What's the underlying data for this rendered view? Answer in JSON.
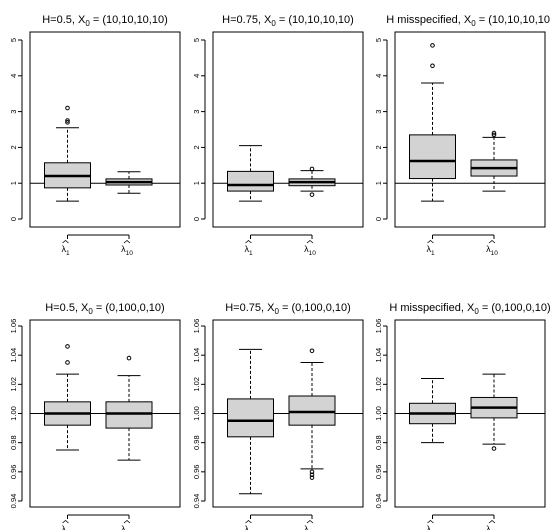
{
  "chart_data": [
    {
      "type": "box",
      "title_main": "H=0.5, X",
      "title_sub": "0",
      "title_rest": " = (10,10,10,10)",
      "categories": [
        {
          "symbol": "λ",
          "sub": "1"
        },
        {
          "symbol": "λ",
          "sub": "10"
        }
      ],
      "ylim": [
        0,
        5
      ],
      "yticks": [
        "0",
        "1",
        "2",
        "3",
        "4",
        "5"
      ],
      "reference_line": 1,
      "boxes": [
        {
          "whisker_low": 0.5,
          "q1": 0.87,
          "median": 1.2,
          "q3": 1.57,
          "whisker_high": 2.55,
          "outliers": [
            2.7,
            2.75,
            3.1
          ]
        },
        {
          "whisker_low": 0.72,
          "q1": 0.95,
          "median": 1.03,
          "q3": 1.12,
          "whisker_high": 1.32,
          "outliers": []
        }
      ]
    },
    {
      "type": "box",
      "title_main": "H=0.75, X",
      "title_sub": "0",
      "title_rest": " = (10,10,10,10)",
      "categories": [
        {
          "symbol": "λ",
          "sub": "1"
        },
        {
          "symbol": "λ",
          "sub": "10"
        }
      ],
      "ylim": [
        0,
        5
      ],
      "yticks": [
        "0",
        "1",
        "2",
        "3",
        "4",
        "5"
      ],
      "reference_line": 1,
      "boxes": [
        {
          "whisker_low": 0.5,
          "q1": 0.78,
          "median": 0.95,
          "q3": 1.33,
          "whisker_high": 2.05,
          "outliers": []
        },
        {
          "whisker_low": 0.78,
          "q1": 0.93,
          "median": 1.03,
          "q3": 1.12,
          "whisker_high": 1.35,
          "outliers": [
            0.68,
            1.4
          ]
        }
      ]
    },
    {
      "type": "box",
      "title_main": "H misspecified, X",
      "title_sub": "0",
      "title_rest": " = (10,10,10,10)",
      "categories": [
        {
          "symbol": "λ",
          "sub": "1"
        },
        {
          "symbol": "λ",
          "sub": "10"
        }
      ],
      "ylim": [
        0,
        5
      ],
      "yticks": [
        "0",
        "1",
        "2",
        "3",
        "4",
        "5"
      ],
      "reference_line": 1,
      "boxes": [
        {
          "whisker_low": 0.5,
          "q1": 1.13,
          "median": 1.62,
          "q3": 2.35,
          "whisker_high": 3.8,
          "outliers": [
            4.28,
            4.85
          ]
        },
        {
          "whisker_low": 0.78,
          "q1": 1.2,
          "median": 1.42,
          "q3": 1.65,
          "whisker_high": 2.28,
          "outliers": [
            2.35,
            2.4
          ]
        }
      ]
    },
    {
      "type": "box",
      "title_main": "H=0.5, X",
      "title_sub": "0",
      "title_rest": " = (0,100,0,10)",
      "categories": [
        {
          "symbol": "λ",
          "sub": "1"
        },
        {
          "symbol": "λ",
          "sub": "10"
        }
      ],
      "ylim": [
        0.94,
        1.06
      ],
      "yticks": [
        "0.94",
        "0.96",
        "0.98",
        "1.00",
        "1.02",
        "1.04",
        "1.06"
      ],
      "reference_line": 1,
      "boxes": [
        {
          "whisker_low": 0.975,
          "q1": 0.992,
          "median": 1.0,
          "q3": 1.008,
          "whisker_high": 1.027,
          "outliers": [
            1.035,
            1.046
          ]
        },
        {
          "whisker_low": 0.968,
          "q1": 0.99,
          "median": 1.0,
          "q3": 1.008,
          "whisker_high": 1.026,
          "outliers": [
            1.038
          ]
        }
      ]
    },
    {
      "type": "box",
      "title_main": "H=0.75, X",
      "title_sub": "0",
      "title_rest": " = (0,100,0,10)",
      "categories": [
        {
          "symbol": "λ",
          "sub": "1"
        },
        {
          "symbol": "λ",
          "sub": "10"
        }
      ],
      "ylim": [
        0.94,
        1.06
      ],
      "yticks": [
        "0.94",
        "0.96",
        "0.98",
        "1.00",
        "1.02",
        "1.04",
        "1.06"
      ],
      "reference_line": 1,
      "boxes": [
        {
          "whisker_low": 0.945,
          "q1": 0.984,
          "median": 0.995,
          "q3": 1.01,
          "whisker_high": 1.044,
          "outliers": []
        },
        {
          "whisker_low": 0.962,
          "q1": 0.992,
          "median": 1.001,
          "q3": 1.012,
          "whisker_high": 1.035,
          "outliers": [
            1.043,
            0.96,
            0.958,
            0.956
          ]
        }
      ]
    },
    {
      "type": "box",
      "title_main": "H misspecified, X",
      "title_sub": "0",
      "title_rest": " = (0,100,0,10)",
      "categories": [
        {
          "symbol": "λ",
          "sub": "1"
        },
        {
          "symbol": "λ",
          "sub": "10"
        }
      ],
      "ylim": [
        0.94,
        1.06
      ],
      "yticks": [
        "0.94",
        "0.96",
        "0.98",
        "1.00",
        "1.02",
        "1.04",
        "1.06"
      ],
      "reference_line": 1,
      "boxes": [
        {
          "whisker_low": 0.98,
          "q1": 0.993,
          "median": 1.0,
          "q3": 1.007,
          "whisker_high": 1.024,
          "outliers": []
        },
        {
          "whisker_low": 0.979,
          "q1": 0.997,
          "median": 1.004,
          "q3": 1.011,
          "whisker_high": 1.027,
          "outliers": [
            0.976
          ]
        }
      ]
    }
  ],
  "colors": {
    "box_fill": "#d3d3d3",
    "stroke": "#000000",
    "background": "#ffffff"
  }
}
